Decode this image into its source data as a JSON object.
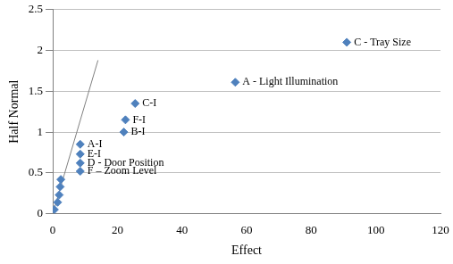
{
  "chart_data": {
    "type": "scatter",
    "x_label": "Effect",
    "y_label": "Half Normal",
    "xlim": [
      0,
      120
    ],
    "xticks": [
      0,
      20,
      40,
      60,
      80,
      100,
      120
    ],
    "ylim": [
      0,
      2.5
    ],
    "yticks": [
      0,
      0.5,
      1,
      1.5,
      2,
      2.5
    ],
    "grid": "y",
    "series": [
      {
        "type": "scatter",
        "color": "#4f81bd",
        "marker": "diamond",
        "x": [
          0.5,
          1.5,
          2.0,
          2.3,
          2.5,
          8.5,
          8.5,
          8.5,
          8.5,
          22.0,
          22.5,
          25.5,
          56.5,
          91.0
        ],
        "values": [
          0.05,
          0.14,
          0.23,
          0.33,
          0.42,
          0.52,
          0.62,
          0.73,
          0.85,
          1.0,
          1.15,
          1.35,
          1.61,
          2.1
        ],
        "labels": [
          null,
          null,
          null,
          null,
          null,
          "F – Zoom Level",
          "D - Door Position",
          "E-I",
          "A-I",
          "B-I",
          "F-I",
          "C-I",
          "A - Light Illumination",
          "C - Tray Size"
        ]
      },
      {
        "type": "line",
        "color": "#808080",
        "line_style": "solid",
        "x": [
          0,
          14
        ],
        "values": [
          0,
          1.88
        ]
      }
    ]
  }
}
